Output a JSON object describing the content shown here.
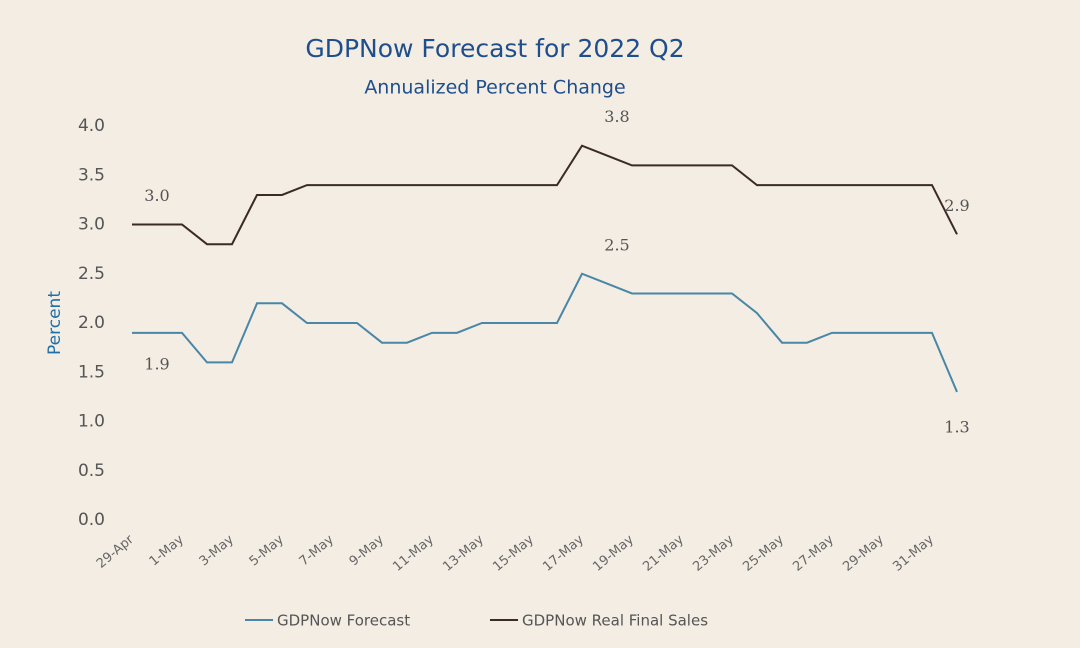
{
  "chart_data": {
    "type": "line",
    "title": "GDPNow Forecast for 2022 Q2",
    "subtitle": "Annualized Percent Change",
    "y_label": "Percent",
    "categories": [
      "29-Apr",
      null,
      "1-May",
      null,
      "3-May",
      null,
      "5-May",
      null,
      "7-May",
      null,
      "9-May",
      null,
      "11-May",
      null,
      "13-May",
      null,
      "15-May",
      null,
      "17-May",
      null,
      "19-May",
      null,
      "21-May",
      null,
      "23-May",
      null,
      "25-May",
      null,
      "27-May",
      null,
      "29-May",
      null,
      "31-May",
      null
    ],
    "series": [
      {
        "name": "GDPNow Forecast",
        "color": "#4a86a8",
        "values": [
          1.9,
          1.9,
          1.9,
          1.6,
          1.6,
          2.2,
          2.2,
          2.0,
          2.0,
          2.0,
          1.8,
          1.8,
          1.9,
          1.9,
          2.0,
          2.0,
          2.0,
          2.0,
          2.5,
          2.4,
          2.3,
          2.3,
          2.3,
          2.3,
          2.3,
          2.1,
          1.8,
          1.8,
          1.9,
          1.9,
          1.9,
          1.9,
          1.9,
          1.3
        ],
        "value_labels": [
          "1.9",
          null,
          null,
          null,
          null,
          null,
          null,
          null,
          null,
          null,
          null,
          null,
          null,
          null,
          null,
          null,
          null,
          null,
          "2.5",
          null,
          null,
          null,
          null,
          null,
          null,
          null,
          null,
          null,
          null,
          null,
          null,
          null,
          null,
          "1.3"
        ]
      },
      {
        "name": "GDPNow Real Final Sales",
        "color": "#3b2a25",
        "values": [
          3.0,
          3.0,
          3.0,
          2.8,
          2.8,
          3.3,
          3.3,
          3.4,
          3.4,
          3.4,
          3.4,
          3.4,
          3.4,
          3.4,
          3.4,
          3.4,
          3.4,
          3.4,
          3.8,
          3.7,
          3.6,
          3.6,
          3.6,
          3.6,
          3.6,
          3.4,
          3.4,
          3.4,
          3.4,
          3.4,
          3.4,
          3.4,
          3.4,
          2.9
        ],
        "value_labels": [
          "3.0",
          null,
          null,
          null,
          null,
          null,
          null,
          null,
          null,
          null,
          null,
          null,
          null,
          null,
          null,
          null,
          null,
          null,
          "3.8",
          null,
          null,
          null,
          null,
          null,
          null,
          null,
          null,
          null,
          null,
          null,
          null,
          null,
          null,
          "2.9"
        ]
      }
    ],
    "ylim": [
      0,
      4
    ],
    "yticks": [
      {
        "value": 0,
        "label": "0.0"
      },
      {
        "value": 0.5,
        "label": "0.5"
      },
      {
        "value": 1,
        "label": "1.0"
      },
      {
        "value": 1.5,
        "label": "1.5"
      },
      {
        "value": 2,
        "label": "2.0"
      },
      {
        "value": 2.5,
        "label": "2.5"
      },
      {
        "value": 3,
        "label": "3.0"
      },
      {
        "value": 3.5,
        "label": "3.5"
      },
      {
        "value": 4,
        "label": "4.0"
      }
    ],
    "grid": false,
    "legend": "bottom"
  }
}
